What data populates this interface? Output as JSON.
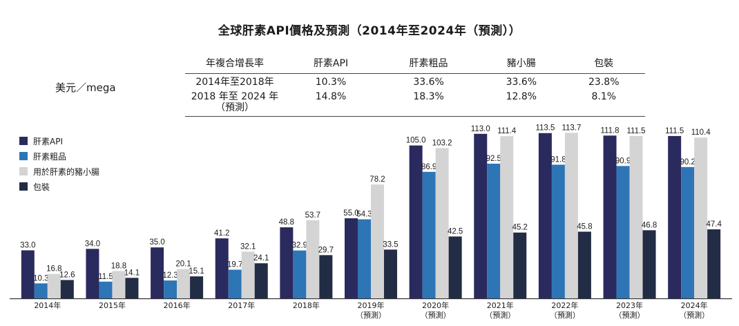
{
  "title": "全球肝素API價格及預測（2014年至2024年（預測））",
  "unit": "美元／mega",
  "cagr_table": {
    "headers": [
      "年複合增長率",
      "肝素API",
      "肝素粗品",
      "豬小腸",
      "包裝"
    ],
    "rows": [
      {
        "period": "2014年至2018年",
        "values": [
          "10.3%",
          "33.6%",
          "33.6%",
          "23.8%"
        ]
      },
      {
        "period": "2018 年至 2024 年\n（預測）",
        "values": [
          "14.8%",
          "18.3%",
          "12.8%",
          "8.1%"
        ]
      }
    ]
  },
  "colors": {
    "series": [
      "#2b2a5e",
      "#2e75b6",
      "#d4d4d4",
      "#222c45"
    ]
  },
  "chart_data": {
    "type": "bar",
    "categories": [
      [
        "2014年"
      ],
      [
        "2015年"
      ],
      [
        "2016年"
      ],
      [
        "2017年"
      ],
      [
        "2018年"
      ],
      [
        "2019年",
        "（預測）"
      ],
      [
        "2020年",
        "（預測）"
      ],
      [
        "2021年",
        "（預測）"
      ],
      [
        "2022年",
        "（預測）"
      ],
      [
        "2023年",
        "（預測）"
      ],
      [
        "2024年",
        "（預測）"
      ]
    ],
    "series": [
      {
        "name": "肝素API",
        "values": [
          33.0,
          34.0,
          35.0,
          41.2,
          48.8,
          55.0,
          105.0,
          113.0,
          113.5,
          111.8,
          111.5
        ]
      },
      {
        "name": "肝素粗品",
        "values": [
          10.3,
          11.5,
          12.3,
          19.7,
          32.9,
          54.3,
          86.9,
          92.5,
          91.8,
          90.9,
          90.2
        ]
      },
      {
        "name": "用於肝素的豬小腸",
        "values": [
          16.8,
          18.8,
          20.1,
          32.1,
          53.7,
          78.2,
          103.2,
          111.4,
          113.7,
          111.5,
          110.4
        ]
      },
      {
        "name": "包裝",
        "values": [
          12.6,
          14.1,
          15.1,
          24.1,
          29.7,
          33.5,
          42.5,
          45.2,
          45.8,
          46.8,
          47.4
        ]
      }
    ],
    "ylim": [
      0,
      120
    ],
    "legend_position": "top-left",
    "grid": false
  }
}
